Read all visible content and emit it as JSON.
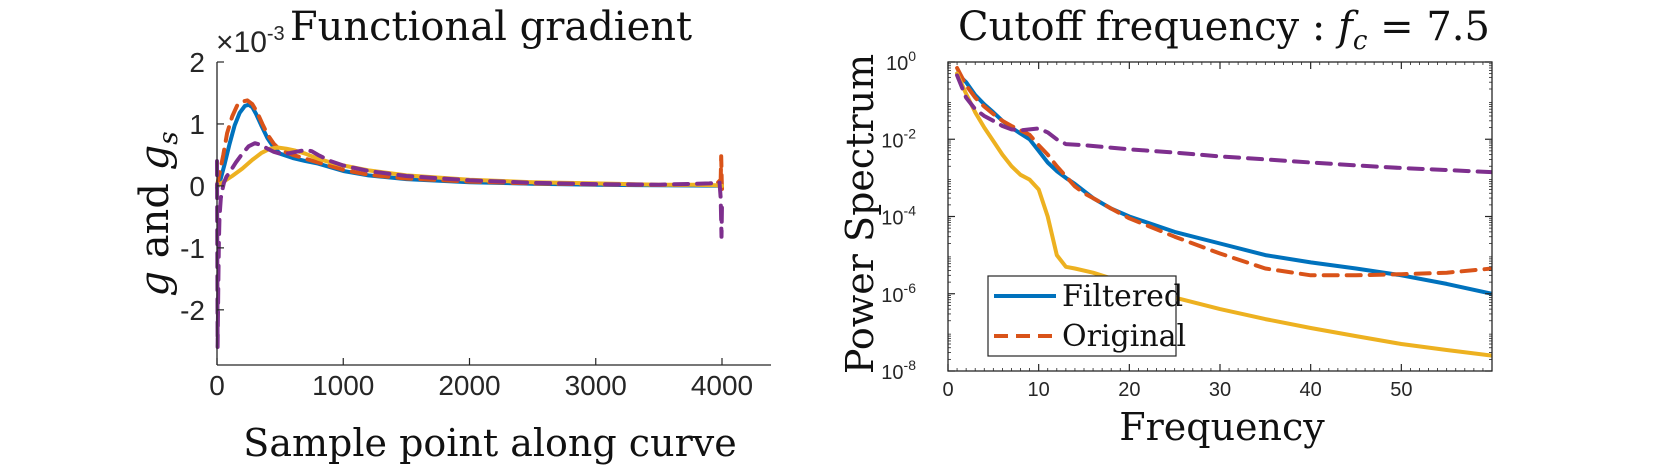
{
  "chart_data": [
    {
      "type": "line",
      "title": "Functional gradient",
      "xlabel": "Sample point along curve",
      "ylabel": "g and g_s",
      "ylabel_parts": {
        "a": "g",
        "and": " and ",
        "b": "g",
        "sub": "s"
      },
      "exponent_label": "×10",
      "exponent_power": "-3",
      "xlim": [
        0,
        4000
      ],
      "ylim": [
        -2.6,
        2
      ],
      "xticks": [
        0,
        1000,
        2000,
        3000,
        4000
      ],
      "xtick_labels": [
        "0",
        "1000",
        "2000",
        "3000",
        "4000"
      ],
      "yticks": [
        -2,
        -1,
        0,
        1,
        2
      ],
      "ytick_labels": [
        "-2",
        "-1",
        "0",
        "1",
        "2"
      ],
      "series": [
        {
          "color": "#0072BD",
          "dash": "solid",
          "x": [
            0,
            30,
            60,
            100,
            140,
            180,
            220,
            250,
            280,
            310,
            350,
            400,
            450,
            500,
            600,
            700,
            800,
            1000,
            1200,
            1500,
            2000,
            2500,
            3000,
            3500,
            3900,
            3980,
            4000
          ],
          "y": [
            -0.03,
            0.12,
            0.35,
            0.68,
            0.98,
            1.18,
            1.29,
            1.31,
            1.27,
            1.16,
            0.98,
            0.77,
            0.62,
            0.52,
            0.45,
            0.4,
            0.36,
            0.24,
            0.17,
            0.11,
            0.06,
            0.035,
            0.02,
            0.01,
            0.005,
            0.003,
            0.0
          ]
        },
        {
          "color": "#D95319",
          "dash": "dashed",
          "x": [
            0,
            20,
            50,
            80,
            120,
            160,
            200,
            240,
            280,
            320,
            360,
            400,
            450,
            500,
            600,
            700,
            800,
            1000,
            1200,
            1500,
            2000,
            2500,
            3000,
            3500,
            3950,
            3990,
            3994,
            3998,
            4000
          ],
          "y": [
            0.0,
            0.2,
            0.5,
            0.85,
            1.12,
            1.3,
            1.36,
            1.38,
            1.32,
            1.18,
            1.0,
            0.83,
            0.68,
            0.58,
            0.5,
            0.44,
            0.38,
            0.26,
            0.18,
            0.12,
            0.07,
            0.04,
            0.025,
            0.015,
            0.02,
            0.1,
            0.48,
            0.1,
            -0.05
          ]
        },
        {
          "color": "#EDB120",
          "dash": "solid",
          "x": [
            0,
            60,
            120,
            200,
            280,
            350,
            420,
            480,
            550,
            620,
            700,
            800,
            900,
            1000,
            1200,
            1500,
            2000,
            2500,
            3000,
            3500,
            3800,
            3950,
            4000
          ],
          "y": [
            0.0,
            0.08,
            0.16,
            0.28,
            0.42,
            0.53,
            0.6,
            0.62,
            0.6,
            0.57,
            0.52,
            0.44,
            0.38,
            0.33,
            0.25,
            0.17,
            0.1,
            0.06,
            0.04,
            0.02,
            0.02,
            0.01,
            0.0
          ]
        },
        {
          "color": "#7E2F8E",
          "dash": "dashed",
          "x": [
            0,
            5,
            10,
            15,
            20,
            30,
            40,
            55,
            75,
            100,
            150,
            200,
            250,
            300,
            350,
            400,
            450,
            500,
            550,
            600,
            650,
            700,
            750,
            800,
            900,
            1000,
            1200,
            1500,
            2000,
            2500,
            3000,
            3500,
            3900,
            3980,
            3990,
            3996,
            4000
          ],
          "y": [
            0.4,
            -2.6,
            -1.6,
            -0.9,
            -0.5,
            -0.2,
            -0.08,
            0.05,
            0.15,
            0.22,
            0.38,
            0.52,
            0.64,
            0.69,
            0.66,
            0.6,
            0.55,
            0.52,
            0.52,
            0.54,
            0.56,
            0.58,
            0.56,
            0.5,
            0.4,
            0.33,
            0.24,
            0.16,
            0.09,
            0.05,
            0.03,
            0.02,
            0.04,
            0.06,
            -0.2,
            -0.82,
            -0.3
          ]
        }
      ]
    },
    {
      "type": "line",
      "title": "Cutoff frequency :",
      "title_math": {
        "f": "f",
        "sub": "c",
        "rest": " = 7.5"
      },
      "xlabel": "Frequency",
      "ylabel": "Power Spectrum",
      "yscale": "log",
      "xlim": [
        0,
        60
      ],
      "ylim": [
        1e-08,
        1
      ],
      "xticks": [
        0,
        10,
        20,
        30,
        40,
        50
      ],
      "xtick_labels": [
        "0",
        "10",
        "20",
        "30",
        "40",
        "50"
      ],
      "yticks": [
        1e-08,
        1e-06,
        0.0001,
        0.01,
        1
      ],
      "ytick_base": "10",
      "ytick_exps": [
        "-8",
        "-6",
        "-4",
        "-2",
        "0"
      ],
      "legend": {
        "location": "bottom-left",
        "entries": [
          "Filtered",
          "Original"
        ]
      },
      "series": [
        {
          "name": "Filtered",
          "color": "#0072BD",
          "dash": "solid",
          "x": [
            1,
            2,
            3,
            4,
            5,
            6,
            7,
            8,
            9,
            10,
            11,
            12,
            13,
            14,
            16,
            18,
            20,
            25,
            30,
            35,
            40,
            45,
            50,
            55,
            60
          ],
          "y": [
            0.5,
            0.3,
            0.14,
            0.08,
            0.05,
            0.03,
            0.02,
            0.014,
            0.01,
            0.005,
            0.0025,
            0.0015,
            0.001,
            0.0007,
            0.0003,
            0.00016,
            0.0001,
            4e-05,
            2e-05,
            1e-05,
            6.5e-06,
            4.5e-06,
            3e-06,
            1.8e-06,
            1e-06
          ]
        },
        {
          "name": "Original",
          "color": "#D95319",
          "dash": "dashed",
          "x": [
            1,
            2,
            3,
            4,
            5,
            6,
            7,
            8,
            9,
            10,
            11,
            12,
            13,
            14,
            15,
            16,
            18,
            20,
            25,
            30,
            35,
            40,
            45,
            50,
            55,
            60
          ],
          "y": [
            0.7,
            0.25,
            0.12,
            0.07,
            0.045,
            0.03,
            0.022,
            0.017,
            0.013,
            0.007,
            0.004,
            0.002,
            0.0011,
            0.0006,
            0.0004,
            0.0003,
            0.00016,
            9e-05,
            3e-05,
            1.1e-05,
            4.5e-06,
            3e-06,
            3e-06,
            3.2e-06,
            3.5e-06,
            4.5e-06
          ]
        },
        {
          "color": "#EDB120",
          "dash": "solid",
          "x": [
            1,
            2,
            3,
            4,
            5,
            6,
            7,
            8,
            9,
            10,
            11,
            12,
            13,
            14,
            16,
            18,
            20,
            25,
            30,
            35,
            40,
            45,
            50,
            55,
            60
          ],
          "y": [
            0.5,
            0.15,
            0.05,
            0.02,
            0.009,
            0.004,
            0.002,
            0.0012,
            0.0009,
            0.0005,
            0.0001,
            1e-05,
            5e-06,
            4.5e-06,
            3.5e-06,
            2.5e-06,
            1.8e-06,
            8e-07,
            4e-07,
            2.2e-07,
            1.3e-07,
            8e-08,
            5e-08,
            3.5e-08,
            2.5e-08
          ]
        },
        {
          "color": "#7E2F8E",
          "dash": "dashed",
          "x": [
            1,
            2,
            3,
            4,
            5,
            6,
            7,
            8,
            9,
            10,
            11,
            12,
            13,
            15,
            20,
            25,
            30,
            35,
            40,
            45,
            50,
            55,
            60
          ],
          "y": [
            0.45,
            0.12,
            0.06,
            0.04,
            0.03,
            0.022,
            0.018,
            0.017,
            0.018,
            0.019,
            0.015,
            0.01,
            0.0075,
            0.007,
            0.0055,
            0.0045,
            0.0036,
            0.003,
            0.0025,
            0.0021,
            0.0018,
            0.0016,
            0.0014
          ]
        }
      ]
    }
  ]
}
